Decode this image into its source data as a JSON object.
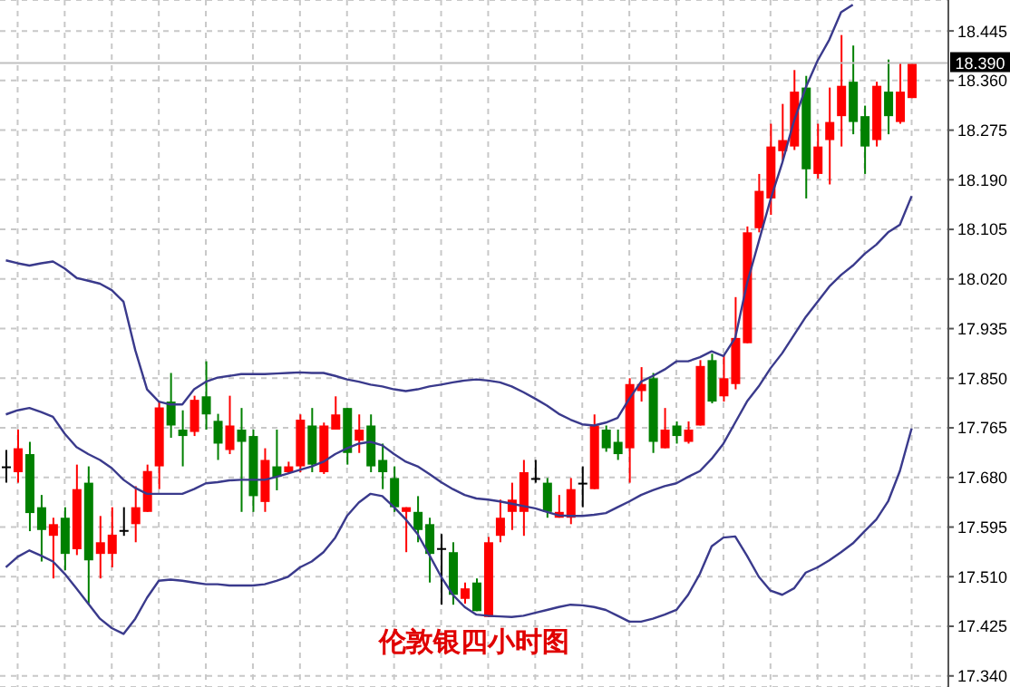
{
  "chart_data": {
    "type": "candlestick",
    "title": "伦敦银四小时图",
    "categories": [
      null,
      null,
      null,
      null,
      null,
      null,
      null,
      null,
      null,
      null,
      null,
      null,
      null,
      null,
      null,
      null,
      null,
      null,
      null,
      null,
      null,
      null,
      null,
      null,
      null,
      null,
      null,
      null,
      null,
      null,
      null,
      null,
      null,
      null,
      null,
      null,
      null,
      null,
      null,
      null,
      null,
      null,
      null,
      null,
      null,
      null,
      null,
      null,
      null,
      null,
      null,
      null,
      null,
      null,
      null,
      null,
      null,
      null,
      null,
      null,
      null,
      null,
      null,
      null,
      null,
      null,
      null,
      null,
      null,
      null,
      null,
      null,
      null,
      null,
      null,
      null,
      null,
      null
    ],
    "ohlc": [
      [
        17.699,
        17.727,
        17.671,
        17.699
      ],
      [
        17.689,
        17.762,
        17.671,
        17.73
      ],
      [
        17.72,
        17.741,
        17.588,
        17.619
      ],
      [
        17.629,
        17.65,
        17.536,
        17.59
      ],
      [
        17.58,
        17.611,
        17.507,
        17.6
      ],
      [
        17.611,
        17.629,
        17.521,
        17.549
      ],
      [
        17.557,
        17.702,
        17.547,
        17.66
      ],
      [
        17.671,
        17.699,
        17.462,
        17.538
      ],
      [
        17.549,
        17.614,
        17.507,
        17.569
      ],
      [
        17.549,
        17.629,
        17.526,
        17.582
      ],
      [
        17.59,
        17.629,
        17.58,
        17.59
      ],
      [
        17.6,
        17.665,
        17.569,
        17.629
      ],
      [
        17.621,
        17.702,
        17.621,
        17.691
      ],
      [
        17.699,
        17.81,
        17.66,
        17.8
      ],
      [
        17.81,
        17.859,
        17.748,
        17.769
      ],
      [
        17.762,
        17.795,
        17.699,
        17.751
      ],
      [
        17.758,
        17.82,
        17.751,
        17.813
      ],
      [
        17.819,
        17.879,
        17.762,
        17.788
      ],
      [
        17.777,
        17.789,
        17.71,
        17.738
      ],
      [
        17.727,
        17.82,
        17.72,
        17.769
      ],
      [
        17.762,
        17.799,
        17.621,
        17.741
      ],
      [
        17.751,
        17.762,
        17.621,
        17.648
      ],
      [
        17.638,
        17.73,
        17.621,
        17.71
      ],
      [
        17.699,
        17.762,
        17.658,
        17.681
      ],
      [
        17.689,
        17.707,
        17.686,
        17.699
      ],
      [
        17.699,
        17.788,
        17.689,
        17.779
      ],
      [
        17.769,
        17.799,
        17.689,
        17.702
      ],
      [
        17.689,
        17.774,
        17.686,
        17.769
      ],
      [
        17.762,
        17.819,
        17.762,
        17.788
      ],
      [
        17.799,
        17.799,
        17.702,
        17.722
      ],
      [
        17.743,
        17.788,
        17.722,
        17.762
      ],
      [
        17.769,
        17.788,
        17.689,
        17.699
      ],
      [
        17.71,
        17.738,
        17.66,
        17.689
      ],
      [
        17.679,
        17.699,
        17.621,
        17.629
      ],
      [
        17.621,
        17.629,
        17.552,
        17.629
      ],
      [
        17.621,
        17.648,
        17.569,
        17.59
      ],
      [
        17.6,
        17.611,
        17.5,
        17.549
      ],
      [
        17.559,
        17.583,
        17.462,
        17.559
      ],
      [
        17.552,
        17.569,
        17.462,
        17.479
      ],
      [
        17.472,
        17.5,
        17.464,
        17.49
      ],
      [
        17.5,
        17.507,
        17.451,
        17.451
      ],
      [
        17.441,
        17.578,
        17.441,
        17.569
      ],
      [
        17.58,
        17.642,
        17.569,
        17.611
      ],
      [
        17.621,
        17.671,
        17.59,
        17.642
      ],
      [
        17.621,
        17.71,
        17.58,
        17.689
      ],
      [
        17.679,
        17.71,
        17.671,
        17.679
      ],
      [
        17.671,
        17.679,
        17.611,
        17.621
      ],
      [
        17.611,
        17.65,
        17.611,
        17.621
      ],
      [
        17.611,
        17.679,
        17.6,
        17.66
      ],
      [
        17.671,
        17.699,
        17.629,
        17.671
      ],
      [
        17.66,
        17.788,
        17.66,
        17.769
      ],
      [
        17.762,
        17.769,
        17.724,
        17.73
      ],
      [
        17.741,
        17.762,
        17.71,
        17.72
      ],
      [
        17.73,
        17.85,
        17.671,
        17.84
      ],
      [
        17.828,
        17.869,
        17.81,
        17.84
      ],
      [
        17.85,
        17.859,
        17.722,
        17.741
      ],
      [
        17.73,
        17.799,
        17.73,
        17.762
      ],
      [
        17.769,
        17.776,
        17.738,
        17.751
      ],
      [
        17.741,
        17.776,
        17.738,
        17.762
      ],
      [
        17.769,
        17.881,
        17.769,
        17.871
      ],
      [
        17.881,
        17.892,
        17.807,
        17.81
      ],
      [
        17.819,
        17.89,
        17.81,
        17.85
      ],
      [
        17.84,
        17.989,
        17.831,
        17.919
      ],
      [
        17.91,
        18.11,
        17.91,
        18.1
      ],
      [
        18.107,
        18.2,
        18.1,
        18.171
      ],
      [
        18.158,
        18.286,
        18.13,
        18.247
      ],
      [
        18.239,
        18.32,
        18.224,
        18.258
      ],
      [
        18.247,
        18.378,
        18.241,
        18.341
      ],
      [
        18.348,
        18.368,
        18.158,
        18.208
      ],
      [
        18.2,
        18.286,
        18.192,
        18.247
      ],
      [
        18.258,
        18.348,
        18.182,
        18.289
      ],
      [
        18.299,
        18.438,
        18.247,
        18.351
      ],
      [
        18.358,
        18.42,
        18.268,
        18.289
      ],
      [
        18.299,
        18.317,
        18.2,
        18.247
      ],
      [
        18.258,
        18.358,
        18.247,
        18.351
      ],
      [
        18.341,
        18.396,
        18.268,
        18.299
      ],
      [
        18.289,
        18.389,
        18.286,
        18.341
      ],
      [
        18.33,
        18.389,
        18.33,
        18.389
      ]
    ],
    "colors": [
      "#000000",
      "#ff0000",
      "#008000",
      "#008000",
      "#ff0000",
      "#008000",
      "#ff0000",
      "#008000",
      "#ff0000",
      "#ff0000",
      "#000000",
      "#ff0000",
      "#ff0000",
      "#ff0000",
      "#008000",
      "#008000",
      "#ff0000",
      "#008000",
      "#008000",
      "#ff0000",
      "#008000",
      "#008000",
      "#ff0000",
      "#008000",
      "#ff0000",
      "#ff0000",
      "#008000",
      "#ff0000",
      "#ff0000",
      "#008000",
      "#ff0000",
      "#008000",
      "#008000",
      "#008000",
      "#ff0000",
      "#008000",
      "#008000",
      "#000000",
      "#008000",
      "#ff0000",
      "#008000",
      "#ff0000",
      "#ff0000",
      "#ff0000",
      "#ff0000",
      "#000000",
      "#008000",
      "#ff0000",
      "#ff0000",
      "#000000",
      "#ff0000",
      "#008000",
      "#008000",
      "#ff0000",
      "#ff0000",
      "#008000",
      "#ff0000",
      "#008000",
      "#ff0000",
      "#ff0000",
      "#008000",
      "#ff0000",
      "#ff0000",
      "#ff0000",
      "#ff0000",
      "#ff0000",
      "#ff0000",
      "#ff0000",
      "#008000",
      "#ff0000",
      "#ff0000",
      "#ff0000",
      "#008000",
      "#008000",
      "#ff0000",
      "#008000",
      "#ff0000",
      "#ff0000"
    ],
    "series": [
      {
        "type": "line",
        "color": "#3a3a8c",
        "values": [
          18.052,
          18.047,
          18.043,
          18.047,
          18.05,
          18.038,
          18.022,
          18.017,
          18.012,
          18.001,
          17.981,
          17.898,
          17.831,
          17.81,
          17.805,
          17.805,
          17.831,
          17.844,
          17.851,
          17.854,
          17.857,
          17.857,
          17.857,
          17.858,
          17.859,
          17.86,
          17.859,
          17.859,
          17.854,
          17.848,
          17.844,
          17.839,
          17.836,
          17.831,
          17.828,
          17.831,
          17.836,
          17.839,
          17.843,
          17.846,
          17.848,
          17.846,
          17.843,
          17.836,
          17.826,
          17.815,
          17.803,
          17.789,
          17.779,
          17.771,
          17.769,
          17.774,
          17.782,
          17.815,
          17.844,
          17.854,
          17.865,
          17.879,
          17.879,
          17.886,
          17.896,
          17.888,
          17.919,
          18.012,
          18.084,
          18.156,
          18.219,
          18.291,
          18.348,
          18.394,
          18.43,
          18.477,
          18.49,
          null,
          null,
          null,
          null,
          null
        ]
      },
      {
        "type": "line",
        "color": "#3a3a8c",
        "values": [
          17.788,
          17.795,
          17.799,
          17.792,
          17.784,
          17.755,
          17.732,
          17.72,
          17.71,
          17.696,
          17.676,
          17.662,
          17.652,
          17.652,
          17.652,
          17.652,
          17.66,
          17.67,
          17.672,
          17.675,
          17.676,
          17.676,
          17.676,
          17.681,
          17.687,
          17.693,
          17.699,
          17.707,
          17.72,
          17.73,
          17.738,
          17.741,
          17.735,
          17.72,
          17.707,
          17.699,
          17.686,
          17.672,
          17.66,
          17.65,
          17.644,
          17.642,
          17.639,
          17.635,
          17.631,
          17.627,
          17.621,
          17.615,
          17.614,
          17.614,
          17.616,
          17.619,
          17.629,
          17.639,
          17.65,
          17.658,
          17.665,
          17.67,
          17.681,
          17.691,
          17.712,
          17.738,
          17.774,
          17.81,
          17.836,
          17.867,
          17.893,
          17.924,
          17.955,
          17.981,
          18.007,
          18.027,
          18.043,
          18.063,
          18.079,
          18.1,
          18.113,
          18.162
        ]
      },
      {
        "type": "line",
        "color": "#3a3a8c",
        "values": [
          17.526,
          17.544,
          17.555,
          17.546,
          17.536,
          17.515,
          17.49,
          17.464,
          17.438,
          17.422,
          17.412,
          17.438,
          17.474,
          17.503,
          17.505,
          17.503,
          17.5,
          17.497,
          17.497,
          17.495,
          17.495,
          17.495,
          17.497,
          17.503,
          17.51,
          17.526,
          17.536,
          17.552,
          17.577,
          17.614,
          17.637,
          17.652,
          17.648,
          17.629,
          17.608,
          17.583,
          17.547,
          17.51,
          17.479,
          17.458,
          17.445,
          17.443,
          17.442,
          17.441,
          17.443,
          17.448,
          17.453,
          17.458,
          17.462,
          17.461,
          17.458,
          17.453,
          17.443,
          17.433,
          17.433,
          17.438,
          17.445,
          17.453,
          17.479,
          17.515,
          17.562,
          17.577,
          17.579,
          17.546,
          17.51,
          17.486,
          17.479,
          17.49,
          17.517,
          17.526,
          17.538,
          17.552,
          17.567,
          17.588,
          17.608,
          17.639,
          17.691,
          17.764
        ]
      }
    ],
    "ylim": [
      17.321,
      18.498
    ],
    "yticks": [
      {
        "value": 17.34,
        "label": "17.340"
      },
      {
        "value": 17.425,
        "label": "17.425"
      },
      {
        "value": 17.51,
        "label": "17.510"
      },
      {
        "value": 17.595,
        "label": "17.595"
      },
      {
        "value": 17.68,
        "label": "17.680"
      },
      {
        "value": 17.765,
        "label": "17.765"
      },
      {
        "value": 17.85,
        "label": "17.850"
      },
      {
        "value": 17.935,
        "label": "17.935"
      },
      {
        "value": 18.02,
        "label": "18.020"
      },
      {
        "value": 18.105,
        "label": "18.105"
      },
      {
        "value": 18.19,
        "label": "18.190"
      },
      {
        "value": 18.275,
        "label": "18.275"
      },
      {
        "value": 18.36,
        "label": "18.360"
      },
      {
        "value": 18.445,
        "label": "18.445"
      }
    ],
    "ref_lines": [
      {
        "axis": "y",
        "value": 18.39,
        "label": "18.390",
        "color": "#c0c0c0"
      }
    ],
    "grid": true,
    "tick_labels": "y"
  }
}
